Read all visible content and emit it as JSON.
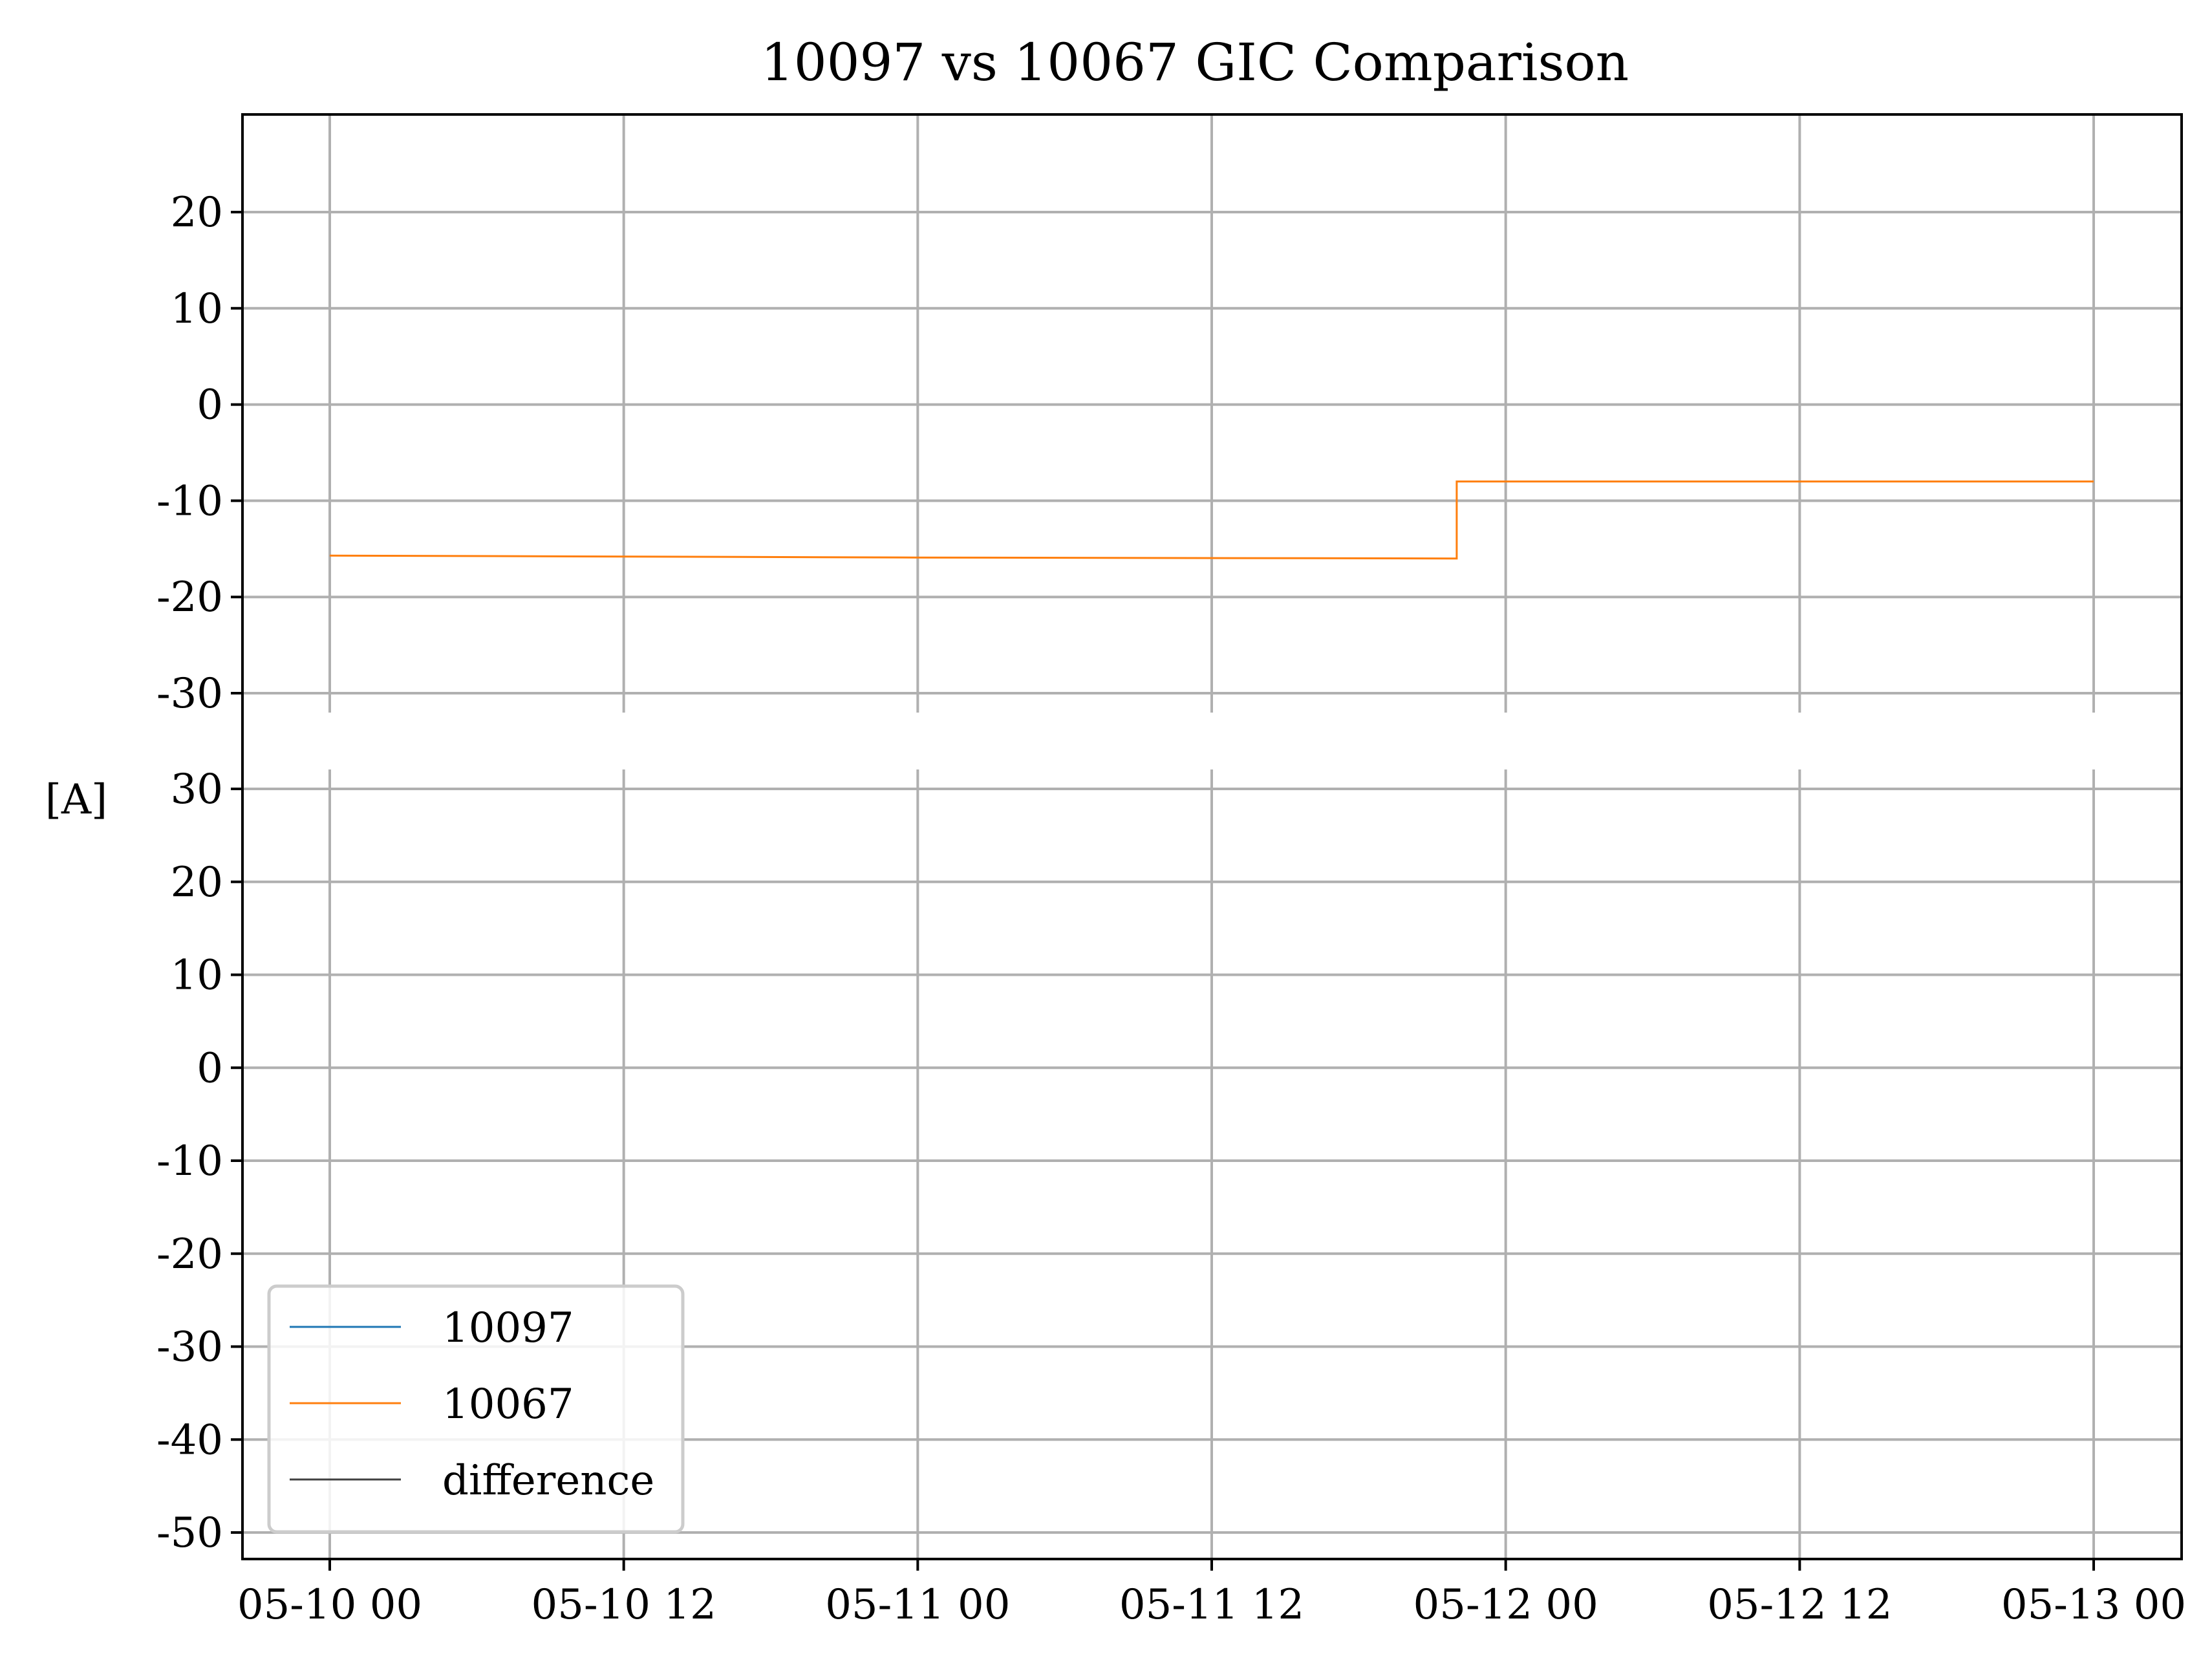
{
  "chart_data": {
    "type": "line",
    "title": "10097 vs 10067 GIC Comparison",
    "ylabel": "[A]",
    "xlabel": "",
    "grid": true,
    "x_range": [
      "05-10 00",
      "05-13 00"
    ],
    "x_ticks": [
      "05-10 00",
      "05-10 12",
      "05-11 00",
      "05-11 12",
      "05-12 00",
      "05-12 12",
      "05-13 00"
    ],
    "legend": {
      "location": "lower-left of bottom panel",
      "entries": [
        {
          "label": "10097",
          "color": "#1f77b4"
        },
        {
          "label": "10067",
          "color": "#ff7f0e"
        },
        {
          "label": "difference",
          "color": "#404040"
        }
      ]
    },
    "panels": [
      {
        "id": "top",
        "ylim": [
          -30,
          30
        ],
        "yticks": [
          20,
          10,
          0,
          -10,
          -20,
          -30
        ],
        "ytick_labels": [
          "20",
          "10",
          "0",
          "-10",
          "-20",
          "-30"
        ],
        "series": [
          {
            "name": "10067",
            "color": "#ff7f0e",
            "points": [
              {
                "x": "05-10 00:00",
                "y": -15.7
              },
              {
                "x": "05-11 00:00",
                "y": -15.9
              },
              {
                "x": "05-11 22:00",
                "y": -16.0
              },
              {
                "x": "05-11 22:00",
                "y": -8.0
              },
              {
                "x": "05-13 00:00",
                "y": -8.0
              }
            ]
          }
        ]
      },
      {
        "id": "bottom",
        "ylim": [
          -50,
          32
        ],
        "yticks": [
          30,
          20,
          10,
          0,
          -10,
          -20,
          -30,
          -40,
          -50
        ],
        "ytick_labels": [
          "30",
          "20",
          "10",
          "0",
          "-10",
          "-20",
          "-30",
          "-40",
          "-50"
        ],
        "series": []
      }
    ]
  }
}
